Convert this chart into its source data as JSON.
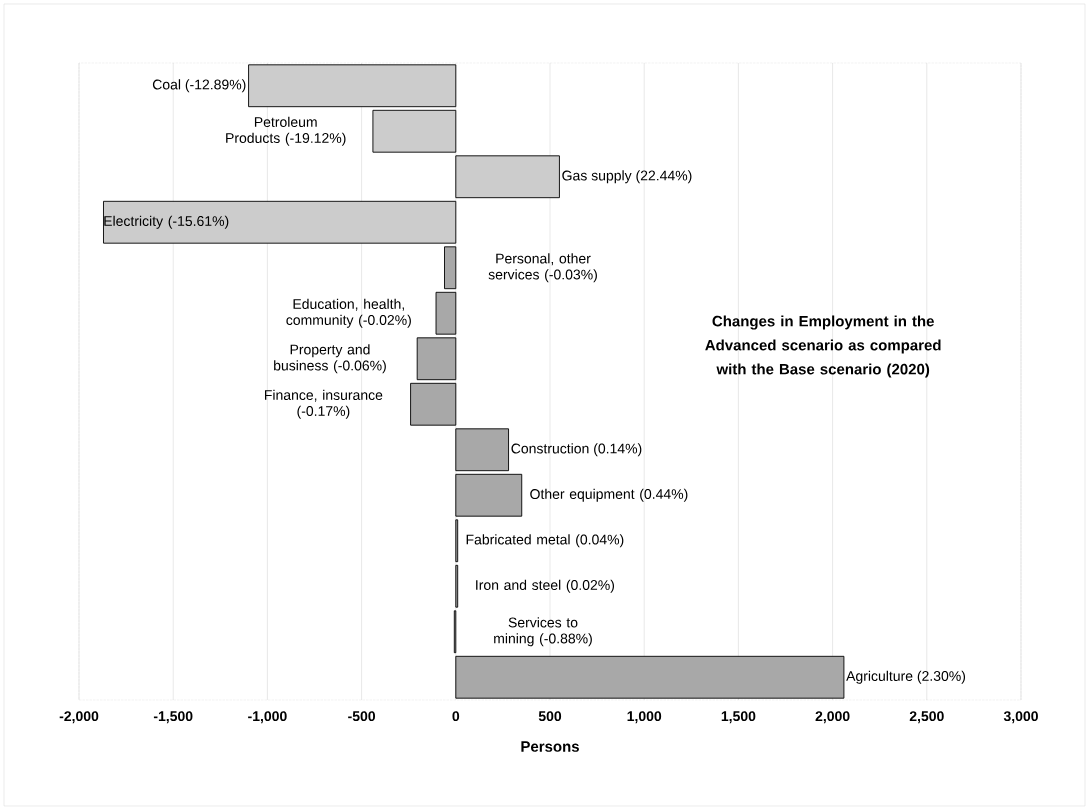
{
  "chart_data": {
    "type": "bar",
    "orientation": "horizontal",
    "categories": [
      "Coal (-12.89%)",
      "Petroleum Products (-19.12%)",
      "Gas supply (22.44%)",
      "Electricity (-15.61%)",
      "Personal, other services (-0.03%)",
      "Education, health, community (-0.02%)",
      "Property and business (-0.06%)",
      "Finance, insurance (-0.17%)",
      "Construction (0.14%)",
      "Other equipment (0.44%)",
      "Fabricated metal (0.04%)",
      "Iron and steel (0.02%)",
      "Services to mining (-0.88%)",
      "Agriculture (2.30%)"
    ],
    "values": [
      -1100,
      -440,
      550,
      -1870,
      -60,
      -105,
      -205,
      -240,
      280,
      350,
      10,
      10,
      -8,
      2060
    ],
    "colors": [
      "#cccccc",
      "#cccccc",
      "#cccccc",
      "#cccccc",
      "#a8a8a8",
      "#a8a8a8",
      "#a8a8a8",
      "#a8a8a8",
      "#a8a8a8",
      "#a8a8a8",
      "#a8a8a8",
      "#a8a8a8",
      "#a8a8a8",
      "#a8a8a8"
    ],
    "xlim": [
      -2000,
      3000
    ],
    "xticks": [
      {
        "value": -2000,
        "label": "-2,000"
      },
      {
        "value": -1500,
        "label": "-1,500"
      },
      {
        "value": -1000,
        "label": "-1,000"
      },
      {
        "value": -500,
        "label": "-500"
      },
      0,
      500,
      {
        "value": 1000,
        "label": "1,000"
      },
      {
        "value": 1500,
        "label": "1,500"
      },
      {
        "value": 2000,
        "label": "2,000"
      },
      {
        "value": 2500,
        "label": "2,500"
      },
      {
        "value": 3000,
        "label": "3,000"
      }
    ],
    "xlabel": "Persons",
    "annotations": [
      "Changes in Employment in the Advanced scenario as compared with the Base scenario (2020)"
    ],
    "grid": "x"
  }
}
